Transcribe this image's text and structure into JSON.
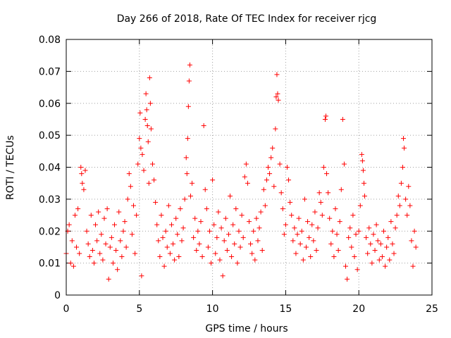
{
  "chart_data": {
    "type": "scatter",
    "title": "Day 266 of 2018, Rate Of TEC Index for receiver rjcg",
    "xlabel": "GPS time / hours",
    "ylabel": "ROTI / TECUs",
    "xlim": [
      0,
      25
    ],
    "ylim": [
      0,
      0.08
    ],
    "grid": true,
    "marker": "+",
    "color": "#ff0000",
    "x_ticks": [
      0,
      5,
      10,
      15,
      20,
      25
    ],
    "x_tick_labels": [
      "0",
      "5",
      "10",
      "15",
      "20",
      "25"
    ],
    "y_ticks": [
      0,
      0.01,
      0.02,
      0.03,
      0.04,
      0.05,
      0.06,
      0.07,
      0.08
    ],
    "y_tick_labels": [
      "0",
      "0.01",
      "0.02",
      "0.03",
      "0.04",
      "0.05",
      "0.06",
      "0.07",
      "0.08"
    ],
    "series": [
      {
        "name": "ROTI",
        "points": [
          [
            0.0,
            0.013
          ],
          [
            0.1,
            0.02
          ],
          [
            0.2,
            0.022
          ],
          [
            0.3,
            0.01
          ],
          [
            0.4,
            0.017
          ],
          [
            0.5,
            0.009
          ],
          [
            0.6,
            0.025
          ],
          [
            0.7,
            0.015
          ],
          [
            0.8,
            0.027
          ],
          [
            0.9,
            0.013
          ],
          [
            1.0,
            0.04
          ],
          [
            1.05,
            0.038
          ],
          [
            1.1,
            0.035
          ],
          [
            1.2,
            0.033
          ],
          [
            1.3,
            0.039
          ],
          [
            1.4,
            0.02
          ],
          [
            1.5,
            0.016
          ],
          [
            1.6,
            0.012
          ],
          [
            1.7,
            0.025
          ],
          [
            1.8,
            0.014
          ],
          [
            1.9,
            0.01
          ],
          [
            2.0,
            0.022
          ],
          [
            2.1,
            0.017
          ],
          [
            2.2,
            0.026
          ],
          [
            2.3,
            0.013
          ],
          [
            2.4,
            0.019
          ],
          [
            2.5,
            0.011
          ],
          [
            2.6,
            0.024
          ],
          [
            2.7,
            0.016
          ],
          [
            2.8,
            0.027
          ],
          [
            2.9,
            0.005
          ],
          [
            3.0,
            0.015
          ],
          [
            3.1,
            0.018
          ],
          [
            3.2,
            0.01
          ],
          [
            3.3,
            0.022
          ],
          [
            3.4,
            0.014
          ],
          [
            3.5,
            0.008
          ],
          [
            3.6,
            0.026
          ],
          [
            3.7,
            0.017
          ],
          [
            3.8,
            0.012
          ],
          [
            3.9,
            0.02
          ],
          [
            4.0,
            0.023
          ],
          [
            4.1,
            0.015
          ],
          [
            4.2,
            0.03
          ],
          [
            4.3,
            0.038
          ],
          [
            4.4,
            0.034
          ],
          [
            4.5,
            0.019
          ],
          [
            4.6,
            0.028
          ],
          [
            4.7,
            0.013
          ],
          [
            4.8,
            0.025
          ],
          [
            4.9,
            0.041
          ],
          [
            5.0,
            0.049
          ],
          [
            5.05,
            0.057
          ],
          [
            5.1,
            0.046
          ],
          [
            5.15,
            0.006
          ],
          [
            5.2,
            0.044
          ],
          [
            5.3,
            0.039
          ],
          [
            5.4,
            0.055
          ],
          [
            5.45,
            0.063
          ],
          [
            5.5,
            0.058
          ],
          [
            5.55,
            0.053
          ],
          [
            5.6,
            0.048
          ],
          [
            5.65,
            0.035
          ],
          [
            5.7,
            0.068
          ],
          [
            5.75,
            0.06
          ],
          [
            5.8,
            0.052
          ],
          [
            5.9,
            0.041
          ],
          [
            6.0,
            0.036
          ],
          [
            6.1,
            0.029
          ],
          [
            6.2,
            0.022
          ],
          [
            6.3,
            0.017
          ],
          [
            6.4,
            0.012
          ],
          [
            6.5,
            0.025
          ],
          [
            6.6,
            0.018
          ],
          [
            6.7,
            0.009
          ],
          [
            6.8,
            0.02
          ],
          [
            6.9,
            0.015
          ],
          [
            7.0,
            0.028
          ],
          [
            7.1,
            0.013
          ],
          [
            7.2,
            0.022
          ],
          [
            7.3,
            0.016
          ],
          [
            7.4,
            0.011
          ],
          [
            7.5,
            0.024
          ],
          [
            7.6,
            0.019
          ],
          [
            7.7,
            0.012
          ],
          [
            7.8,
            0.027
          ],
          [
            7.9,
            0.017
          ],
          [
            8.0,
            0.021
          ],
          [
            8.1,
            0.03
          ],
          [
            8.2,
            0.043
          ],
          [
            8.25,
            0.038
          ],
          [
            8.3,
            0.049
          ],
          [
            8.35,
            0.059
          ],
          [
            8.4,
            0.067
          ],
          [
            8.45,
            0.072
          ],
          [
            8.5,
            0.031
          ],
          [
            8.6,
            0.035
          ],
          [
            8.7,
            0.018
          ],
          [
            8.8,
            0.024
          ],
          [
            8.9,
            0.014
          ],
          [
            9.0,
            0.02
          ],
          [
            9.1,
            0.016
          ],
          [
            9.2,
            0.023
          ],
          [
            9.3,
            0.012
          ],
          [
            9.4,
            0.053
          ],
          [
            9.5,
            0.033
          ],
          [
            9.6,
            0.027
          ],
          [
            9.7,
            0.015
          ],
          [
            9.8,
            0.02
          ],
          [
            9.9,
            0.01
          ],
          [
            10.0,
            0.036
          ],
          [
            10.1,
            0.022
          ],
          [
            10.2,
            0.013
          ],
          [
            10.3,
            0.018
          ],
          [
            10.4,
            0.026
          ],
          [
            10.5,
            0.011
          ],
          [
            10.6,
            0.021
          ],
          [
            10.7,
            0.006
          ],
          [
            10.8,
            0.017
          ],
          [
            10.9,
            0.024
          ],
          [
            11.0,
            0.014
          ],
          [
            11.1,
            0.019
          ],
          [
            11.2,
            0.031
          ],
          [
            11.3,
            0.012
          ],
          [
            11.4,
            0.022
          ],
          [
            11.5,
            0.016
          ],
          [
            11.6,
            0.027
          ],
          [
            11.7,
            0.01
          ],
          [
            11.8,
            0.02
          ],
          [
            11.9,
            0.015
          ],
          [
            12.0,
            0.025
          ],
          [
            12.1,
            0.018
          ],
          [
            12.2,
            0.037
          ],
          [
            12.3,
            0.041
          ],
          [
            12.4,
            0.035
          ],
          [
            12.5,
            0.023
          ],
          [
            12.6,
            0.016
          ],
          [
            12.7,
            0.013
          ],
          [
            12.8,
            0.02
          ],
          [
            12.9,
            0.011
          ],
          [
            13.0,
            0.024
          ],
          [
            13.1,
            0.017
          ],
          [
            13.2,
            0.021
          ],
          [
            13.3,
            0.026
          ],
          [
            13.4,
            0.014
          ],
          [
            13.5,
            0.033
          ],
          [
            13.6,
            0.028
          ],
          [
            13.7,
            0.036
          ],
          [
            13.8,
            0.04
          ],
          [
            13.9,
            0.038
          ],
          [
            14.0,
            0.043
          ],
          [
            14.1,
            0.046
          ],
          [
            14.2,
            0.034
          ],
          [
            14.3,
            0.052
          ],
          [
            14.35,
            0.062
          ],
          [
            14.4,
            0.069
          ],
          [
            14.45,
            0.063
          ],
          [
            14.5,
            0.061
          ],
          [
            14.6,
            0.041
          ],
          [
            14.7,
            0.032
          ],
          [
            14.8,
            0.027
          ],
          [
            14.9,
            0.019
          ],
          [
            15.0,
            0.022
          ],
          [
            15.1,
            0.04
          ],
          [
            15.2,
            0.036
          ],
          [
            15.3,
            0.029
          ],
          [
            15.4,
            0.025
          ],
          [
            15.5,
            0.017
          ],
          [
            15.6,
            0.021
          ],
          [
            15.7,
            0.013
          ],
          [
            15.8,
            0.019
          ],
          [
            15.9,
            0.024
          ],
          [
            16.0,
            0.016
          ],
          [
            16.1,
            0.02
          ],
          [
            16.2,
            0.011
          ],
          [
            16.3,
            0.03
          ],
          [
            16.4,
            0.015
          ],
          [
            16.5,
            0.023
          ],
          [
            16.6,
            0.018
          ],
          [
            16.7,
            0.012
          ],
          [
            16.8,
            0.022
          ],
          [
            16.9,
            0.017
          ],
          [
            17.0,
            0.026
          ],
          [
            17.1,
            0.014
          ],
          [
            17.2,
            0.021
          ],
          [
            17.3,
            0.032
          ],
          [
            17.4,
            0.029
          ],
          [
            17.5,
            0.025
          ],
          [
            17.6,
            0.04
          ],
          [
            17.7,
            0.055
          ],
          [
            17.75,
            0.056
          ],
          [
            17.8,
            0.038
          ],
          [
            17.9,
            0.032
          ],
          [
            18.0,
            0.024
          ],
          [
            18.1,
            0.016
          ],
          [
            18.2,
            0.02
          ],
          [
            18.3,
            0.012
          ],
          [
            18.4,
            0.027
          ],
          [
            18.5,
            0.019
          ],
          [
            18.6,
            0.014
          ],
          [
            18.7,
            0.023
          ],
          [
            18.8,
            0.033
          ],
          [
            18.9,
            0.055
          ],
          [
            19.0,
            0.041
          ],
          [
            19.1,
            0.009
          ],
          [
            19.2,
            0.005
          ],
          [
            19.3,
            0.018
          ],
          [
            19.4,
            0.021
          ],
          [
            19.5,
            0.015
          ],
          [
            19.6,
            0.025
          ],
          [
            19.7,
            0.012
          ],
          [
            19.8,
            0.019
          ],
          [
            19.9,
            0.008
          ],
          [
            20.0,
            0.02
          ],
          [
            20.1,
            0.028
          ],
          [
            20.2,
            0.044
          ],
          [
            20.25,
            0.042
          ],
          [
            20.3,
            0.039
          ],
          [
            20.35,
            0.035
          ],
          [
            20.4,
            0.031
          ],
          [
            20.5,
            0.018
          ],
          [
            20.6,
            0.013
          ],
          [
            20.7,
            0.021
          ],
          [
            20.8,
            0.016
          ],
          [
            20.9,
            0.01
          ],
          [
            21.0,
            0.019
          ],
          [
            21.1,
            0.014
          ],
          [
            21.2,
            0.022
          ],
          [
            21.3,
            0.017
          ],
          [
            21.4,
            0.011
          ],
          [
            21.5,
            0.016
          ],
          [
            21.6,
            0.012
          ],
          [
            21.7,
            0.02
          ],
          [
            21.8,
            0.009
          ],
          [
            21.9,
            0.015
          ],
          [
            22.0,
            0.018
          ],
          [
            22.1,
            0.011
          ],
          [
            22.2,
            0.023
          ],
          [
            22.3,
            0.016
          ],
          [
            22.4,
            0.013
          ],
          [
            22.5,
            0.021
          ],
          [
            22.6,
            0.025
          ],
          [
            22.7,
            0.031
          ],
          [
            22.8,
            0.028
          ],
          [
            22.9,
            0.035
          ],
          [
            23.0,
            0.04
          ],
          [
            23.05,
            0.049
          ],
          [
            23.1,
            0.046
          ],
          [
            23.2,
            0.03
          ],
          [
            23.3,
            0.025
          ],
          [
            23.4,
            0.034
          ],
          [
            23.5,
            0.028
          ],
          [
            23.6,
            0.017
          ],
          [
            23.7,
            0.009
          ],
          [
            23.8,
            0.02
          ],
          [
            23.9,
            0.015
          ]
        ]
      }
    ]
  }
}
